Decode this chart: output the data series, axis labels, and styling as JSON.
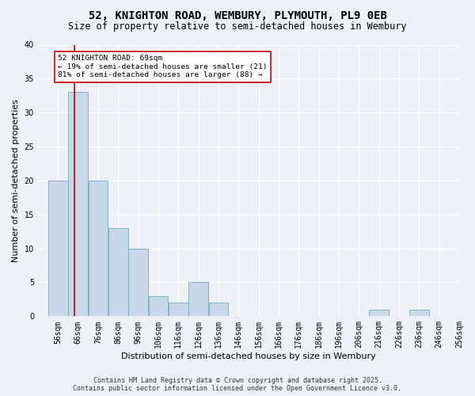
{
  "title1": "52, KNIGHTON ROAD, WEMBURY, PLYMOUTH, PL9 0EB",
  "title2": "Size of property relative to semi-detached houses in Wembury",
  "xlabel": "Distribution of semi-detached houses by size in Wembury",
  "ylabel": "Number of semi-detached properties",
  "bin_labels": [
    "56sqm",
    "66sqm",
    "76sqm",
    "86sqm",
    "96sqm",
    "106sqm",
    "116sqm",
    "126sqm",
    "136sqm",
    "146sqm",
    "156sqm",
    "166sqm",
    "176sqm",
    "186sqm",
    "196sqm",
    "206sqm",
    "216sqm",
    "226sqm",
    "236sqm",
    "246sqm",
    "256sqm"
  ],
  "bin_edges": [
    56,
    66,
    76,
    86,
    96,
    106,
    116,
    126,
    136,
    146,
    156,
    166,
    176,
    186,
    196,
    206,
    216,
    226,
    236,
    246,
    256
  ],
  "counts": [
    20,
    33,
    20,
    13,
    10,
    3,
    2,
    5,
    2,
    0,
    0,
    0,
    0,
    0,
    0,
    0,
    1,
    0,
    1,
    0
  ],
  "bar_color": "#c8d8e8",
  "bar_edge_color": "#7aaabb",
  "subject_value": 69,
  "subject_line_color": "#cc0000",
  "annotation_text": "52 KNIGHTON ROAD: 69sqm\n← 19% of semi-detached houses are smaller (21)\n81% of semi-detached houses are larger (88) →",
  "annotation_box_color": "#ffffff",
  "annotation_box_edge": "#cc0000",
  "ylim": [
    0,
    40
  ],
  "yticks": [
    0,
    5,
    10,
    15,
    20,
    25,
    30,
    35,
    40
  ],
  "footer1": "Contains HM Land Registry data © Crown copyright and database right 2025.",
  "footer2": "Contains public sector information licensed under the Open Government Licence v3.0.",
  "background_color": "#edf2f9",
  "plot_background": "#edf2f9",
  "title_fontsize": 10,
  "subtitle_fontsize": 8.5,
  "axis_fontsize": 8,
  "tick_fontsize": 7,
  "footer_fontsize": 6
}
